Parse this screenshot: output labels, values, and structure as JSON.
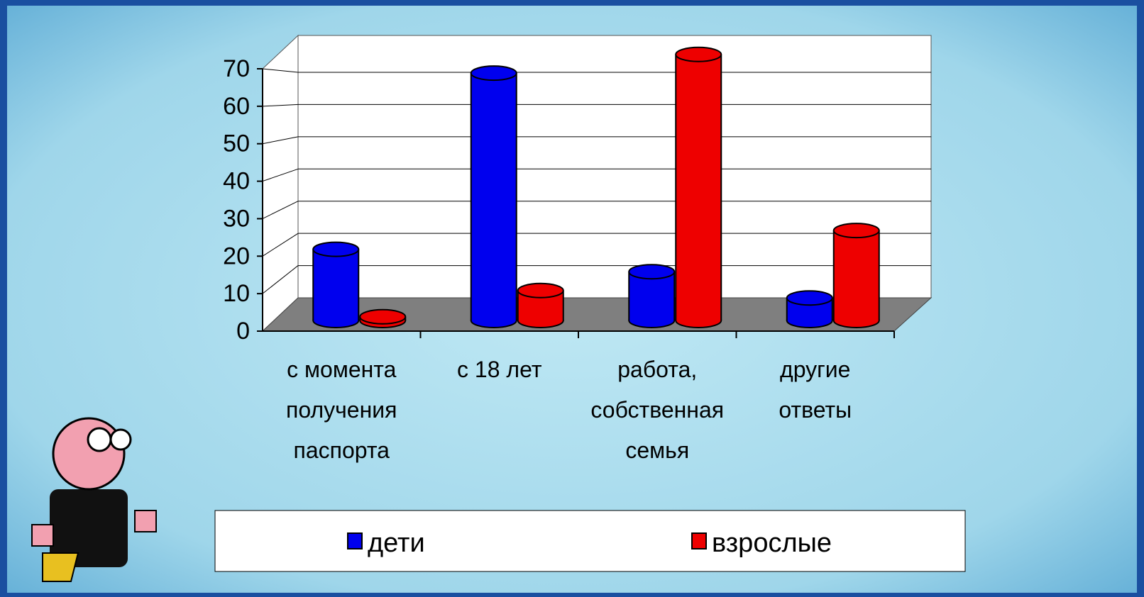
{
  "chart_data": {
    "type": "bar3d",
    "categories": [
      "с момента\nполучения\nпаспорта",
      "с 18 лет",
      "работа,\nсобственная\nсемья",
      "другие\nответы"
    ],
    "series": [
      {
        "name": "дети",
        "color": "#0000ee",
        "values": [
          19,
          66,
          13,
          6
        ]
      },
      {
        "name": "взрослые",
        "color": "#ee0000",
        "values": [
          1,
          8,
          71,
          24
        ]
      }
    ],
    "ylim": [
      0,
      70
    ],
    "yticks": [
      0,
      10,
      20,
      30,
      40,
      50,
      60,
      70
    ],
    "grid": true,
    "legend": "bottom"
  }
}
